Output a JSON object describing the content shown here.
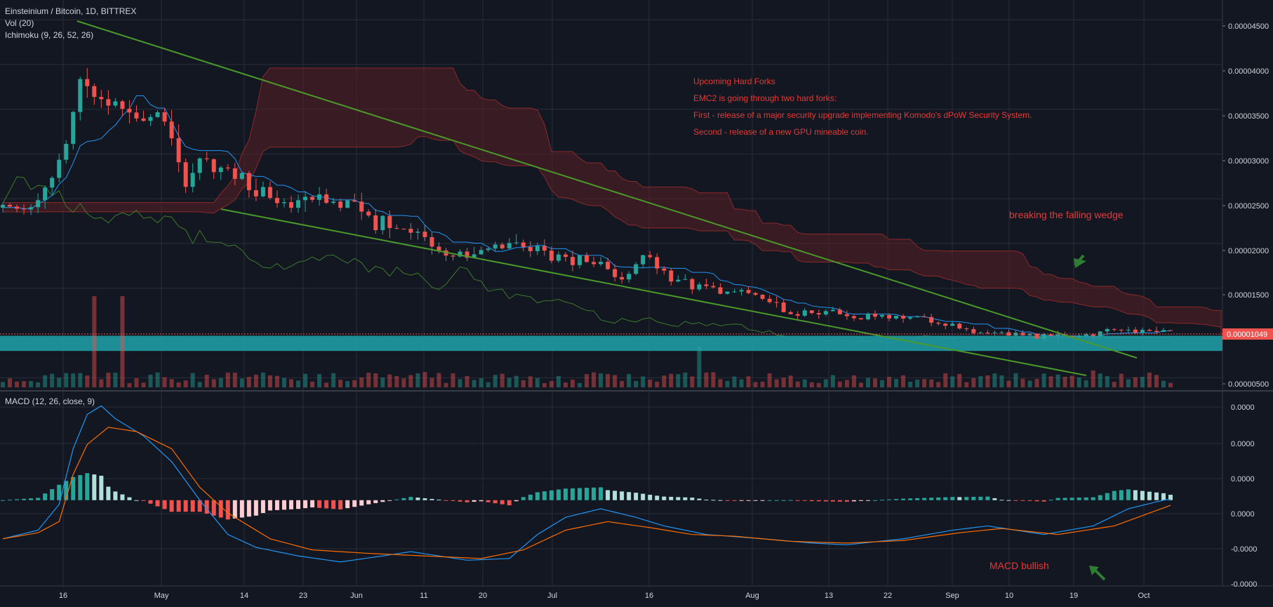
{
  "header": {
    "symbol_line": "Einsteinium / Bitcoin, 1D, BITTREX",
    "vol_line": "Vol (20)",
    "ichimoku_line": "Ichimoku (9, 26, 52, 26)",
    "macd_line": "MACD (12, 26, close, 9)"
  },
  "colors": {
    "background": "#131722",
    "grid": "#2a2e39",
    "up": "#26a69a",
    "down": "#ef5350",
    "macd_line": "#2196f3",
    "signal_line": "#ff6d00",
    "trendline": "#4a9a2a",
    "cloud": "#5a1f24",
    "annotation_red": "#e53935",
    "zone": "#1f9aa3",
    "arrow_green": "#2e7d32"
  },
  "annotations": {
    "title": "Upcoming Hard Forks",
    "line1": "EMC2 is going through two hard forks:",
    "line2": "First - release of a major security upgrade implementing Komodo's dPoW Security System.",
    "line3": "Second - release of a new GPU mineable coin.",
    "wedge": "breaking the falling wedge",
    "macd": "MACD bullish"
  },
  "chart_data": [
    {
      "type": "candlestick",
      "title": "Einsteinium / Bitcoin, 1D, BITTREX",
      "x_ticks": [
        "16",
        "May",
        "14",
        "23",
        "Jun",
        "11",
        "20",
        "Jul",
        "16",
        "Aug",
        "13",
        "22",
        "Sep",
        "10",
        "19",
        "Oct"
      ],
      "y_ticks": [
        "0.00004500",
        "0.00004000",
        "0.00003500",
        "0.00003000",
        "0.00002500",
        "0.00002000",
        "0.00001500",
        "0.00000500"
      ],
      "ylim": [
        3.7e-06,
        4.72e-05
      ],
      "last_price": "0.00001049",
      "price_path": [
        [
          0,
          2.4e-05
        ],
        [
          5,
          2.45e-05
        ],
        [
          9,
          3.1e-05
        ],
        [
          11,
          3.9e-05
        ],
        [
          13,
          3.7e-05
        ],
        [
          16,
          3.55e-05
        ],
        [
          19,
          3.45e-05
        ],
        [
          22,
          3.4e-05
        ],
        [
          24,
          3.2e-05
        ],
        [
          26,
          2.7e-05
        ],
        [
          28,
          2.9e-05
        ],
        [
          30,
          2.85e-05
        ],
        [
          35,
          2.65e-05
        ],
        [
          40,
          2.45e-05
        ],
        [
          45,
          2.48e-05
        ],
        [
          50,
          2.45e-05
        ],
        [
          52,
          2.25e-05
        ],
        [
          56,
          2.22e-05
        ],
        [
          60,
          2.1e-05
        ],
        [
          64,
          1.85e-05
        ],
        [
          67,
          1.9e-05
        ],
        [
          70,
          1.95e-05
        ],
        [
          72,
          2.05e-05
        ],
        [
          75,
          1.95e-05
        ],
        [
          80,
          1.8e-05
        ],
        [
          83,
          1.85e-05
        ],
        [
          85,
          1.75e-05
        ],
        [
          88,
          1.6e-05
        ],
        [
          90,
          1.8e-05
        ],
        [
          92,
          1.85e-05
        ],
        [
          95,
          1.6e-05
        ],
        [
          100,
          1.5e-05
        ],
        [
          105,
          1.45e-05
        ],
        [
          110,
          1.35e-05
        ],
        [
          112,
          1.2e-05
        ],
        [
          115,
          1.25e-05
        ],
        [
          120,
          1.2e-05
        ],
        [
          125,
          1.18e-05
        ],
        [
          130,
          1.18e-05
        ],
        [
          135,
          1.08e-05
        ],
        [
          140,
          1e-05
        ],
        [
          145,
          9.8e-06
        ],
        [
          150,
          9.6e-06
        ],
        [
          155,
          1e-05
        ],
        [
          160,
          1.03e-05
        ],
        [
          165,
          1.05e-05
        ],
        [
          166,
          1.05e-05
        ]
      ],
      "support_zone": [
        8e-06,
        9.7e-06
      ]
    },
    {
      "type": "bar",
      "title": "MACD (12, 26, close, 9)",
      "y_ticks": [
        "0.0000",
        "0.0000",
        "0.0000",
        "0.0000",
        "-0.0000",
        "-0.0000"
      ],
      "macd_path": [
        [
          0,
          -0.45
        ],
        [
          5,
          -0.35
        ],
        [
          8,
          -0.05
        ],
        [
          10,
          0.6
        ],
        [
          12,
          1.0
        ],
        [
          14,
          1.1
        ],
        [
          16,
          0.95
        ],
        [
          20,
          0.75
        ],
        [
          24,
          0.45
        ],
        [
          28,
          0.0
        ],
        [
          32,
          -0.4
        ],
        [
          36,
          -0.55
        ],
        [
          42,
          -0.65
        ],
        [
          48,
          -0.72
        ],
        [
          54,
          -0.65
        ],
        [
          58,
          -0.6
        ],
        [
          62,
          -0.65
        ],
        [
          66,
          -0.7
        ],
        [
          72,
          -0.68
        ],
        [
          76,
          -0.4
        ],
        [
          80,
          -0.2
        ],
        [
          85,
          -0.1
        ],
        [
          90,
          -0.2
        ],
        [
          94,
          -0.3
        ],
        [
          100,
          -0.4
        ],
        [
          108,
          -0.45
        ],
        [
          115,
          -0.5
        ],
        [
          120,
          -0.52
        ],
        [
          128,
          -0.45
        ],
        [
          135,
          -0.35
        ],
        [
          140,
          -0.3
        ],
        [
          148,
          -0.4
        ],
        [
          155,
          -0.3
        ],
        [
          160,
          -0.1
        ],
        [
          165,
          0.0
        ],
        [
          166,
          0.01
        ]
      ],
      "signal_path": [
        [
          0,
          -0.45
        ],
        [
          5,
          -0.38
        ],
        [
          8,
          -0.25
        ],
        [
          10,
          0.3
        ],
        [
          12,
          0.65
        ],
        [
          15,
          0.85
        ],
        [
          19,
          0.8
        ],
        [
          24,
          0.6
        ],
        [
          28,
          0.15
        ],
        [
          32,
          -0.15
        ],
        [
          38,
          -0.45
        ],
        [
          44,
          -0.58
        ],
        [
          52,
          -0.62
        ],
        [
          60,
          -0.65
        ],
        [
          68,
          -0.68
        ],
        [
          74,
          -0.58
        ],
        [
          80,
          -0.35
        ],
        [
          86,
          -0.25
        ],
        [
          92,
          -0.32
        ],
        [
          98,
          -0.4
        ],
        [
          104,
          -0.42
        ],
        [
          112,
          -0.48
        ],
        [
          120,
          -0.5
        ],
        [
          128,
          -0.47
        ],
        [
          136,
          -0.38
        ],
        [
          142,
          -0.33
        ],
        [
          150,
          -0.4
        ],
        [
          158,
          -0.3
        ],
        [
          164,
          -0.12
        ],
        [
          166,
          -0.06
        ]
      ],
      "ylim": [
        -1.0,
        1.25
      ]
    }
  ]
}
